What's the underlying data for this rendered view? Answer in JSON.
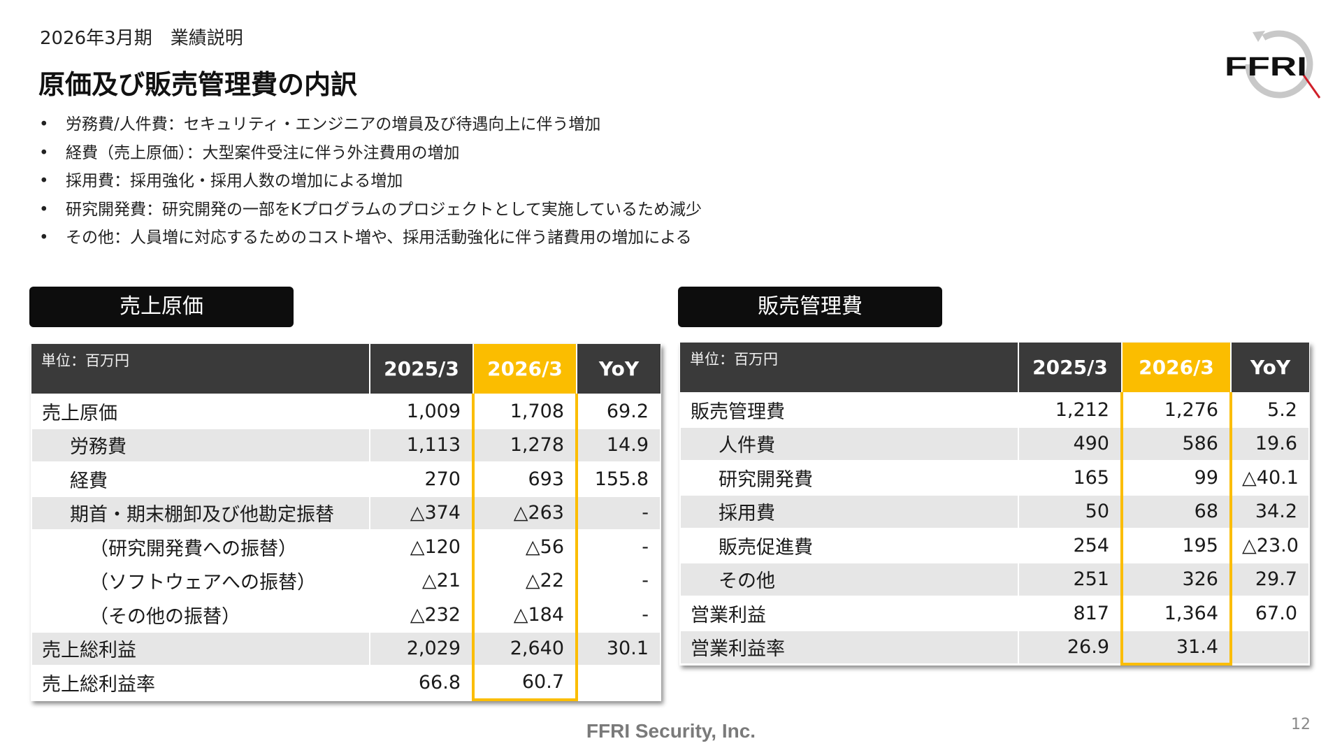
{
  "header": {
    "period": "2026年3月期　業績説明",
    "title": "原価及び販売管理費の内訳",
    "logo_text": "FFRI"
  },
  "bullets": [
    "労務費/人件費：セキュリティ・エンジニアの増員及び待遇向上に伴う増加",
    "経費（売上原価）：大型案件受注に伴う外注費用の増加",
    "採用費：採用強化・採用人数の増加による増加",
    "研究開発費：研究開発の一部をKプログラムのプロジェクトとして実施しているため減少",
    "その他：人員増に対応するためのコスト増や、採用活動強化に伴う諸費用の増加による"
  ],
  "cogs": {
    "label": "売上原価",
    "unit": "単位：百万円",
    "columns": [
      "2025/3",
      "2026/3",
      "YoY"
    ],
    "rows": [
      {
        "name": "売上原価",
        "v2025": "1,009",
        "v2026": "1,708",
        "yoy": "69.2"
      },
      {
        "name": "労務費",
        "v2025": "1,113",
        "v2026": "1,278",
        "yoy": "14.9"
      },
      {
        "name": "経費",
        "v2025": "270",
        "v2026": "693",
        "yoy": "155.8"
      },
      {
        "name": "期首・期末棚卸及び他勘定振替",
        "v2025": "△374",
        "v2026": "△263",
        "yoy": "-"
      },
      {
        "name": "（研究開発費への振替）",
        "v2025": "△120",
        "v2026": "△56",
        "yoy": "-"
      },
      {
        "name": "（ソフトウェアへの振替）",
        "v2025": "△21",
        "v2026": "△22",
        "yoy": "-"
      },
      {
        "name": "（その他の振替）",
        "v2025": "△232",
        "v2026": "△184",
        "yoy": "-"
      },
      {
        "name": "売上総利益",
        "v2025": "2,029",
        "v2026": "2,640",
        "yoy": "30.1"
      },
      {
        "name": "売上総利益率",
        "v2025": "66.8",
        "v2026": "60.7",
        "yoy": ""
      }
    ]
  },
  "sga": {
    "label": "販売管理費",
    "unit": "単位：百万円",
    "columns": [
      "2025/3",
      "2026/3",
      "YoY"
    ],
    "rows": [
      {
        "name": "販売管理費",
        "v2025": "1,212",
        "v2026": "1,276",
        "yoy": "5.2"
      },
      {
        "name": "人件費",
        "v2025": "490",
        "v2026": "586",
        "yoy": "19.6"
      },
      {
        "name": "研究開発費",
        "v2025": "165",
        "v2026": "99",
        "yoy": "△40.1"
      },
      {
        "name": "採用費",
        "v2025": "50",
        "v2026": "68",
        "yoy": "34.2"
      },
      {
        "name": "販売促進費",
        "v2025": "254",
        "v2026": "195",
        "yoy": "△23.0"
      },
      {
        "name": "その他",
        "v2025": "251",
        "v2026": "326",
        "yoy": "29.7"
      },
      {
        "name": "営業利益",
        "v2025": "817",
        "v2026": "1,364",
        "yoy": "67.0"
      },
      {
        "name": "営業利益率",
        "v2025": "26.9",
        "v2026": "31.4",
        "yoy": ""
      }
    ]
  },
  "colors": {
    "highlight": "#fbbd00",
    "header_bg": "#3a3a3a",
    "label_bg": "#0d0d0d",
    "row_gray": "#e6e6e6",
    "logo_red": "#d0202a"
  },
  "footer": {
    "company": "FFRI Security, Inc.",
    "page": "12"
  }
}
